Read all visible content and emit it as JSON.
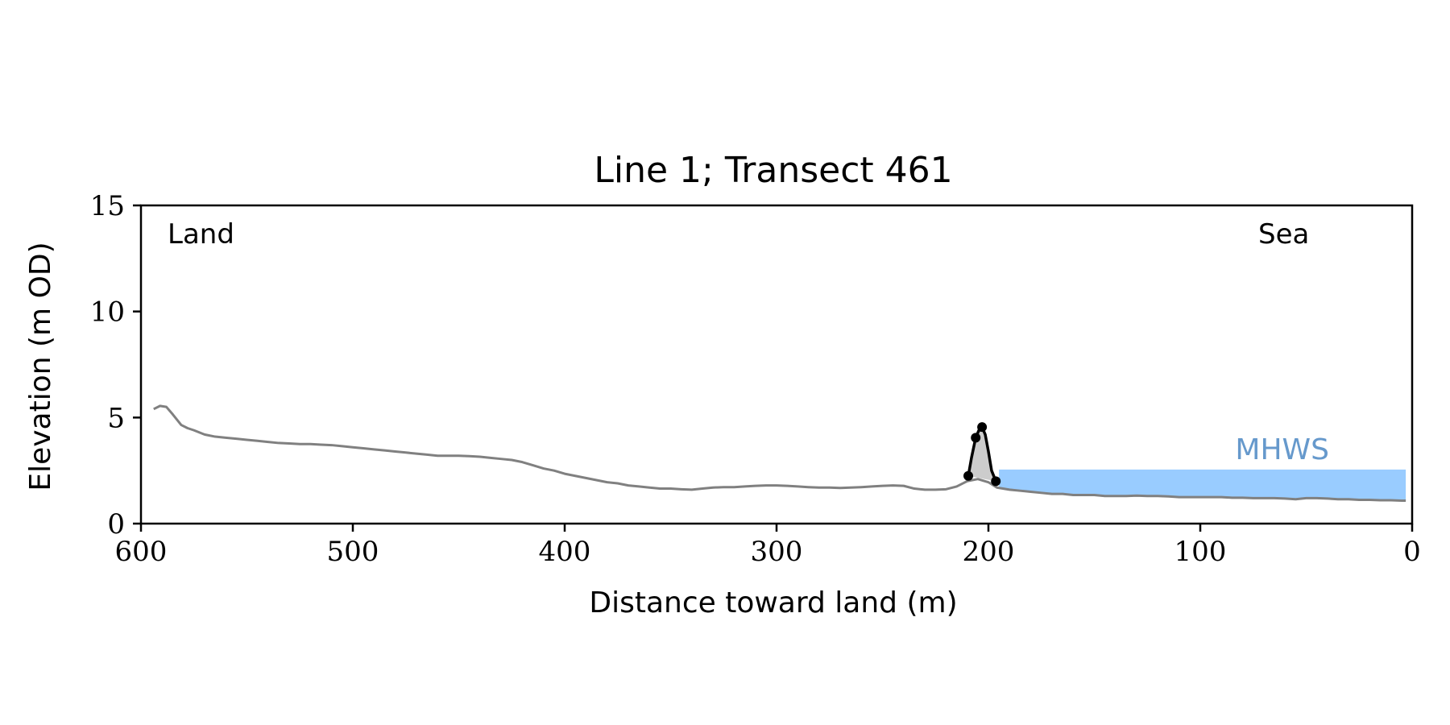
{
  "chart_data": {
    "type": "line",
    "title": "Line 1; Transect 461",
    "xlabel": "Distance toward land (m)",
    "ylabel": "Elevation (m OD)",
    "xlim": [
      600,
      0
    ],
    "ylim": [
      0,
      15
    ],
    "x_ticks": [
      600,
      500,
      400,
      300,
      200,
      100,
      0
    ],
    "y_ticks": [
      0,
      5,
      10,
      15
    ],
    "x_tick_labels": [
      "600",
      "500",
      "400",
      "300",
      "200",
      "100",
      "0"
    ],
    "y_tick_labels": [
      "0",
      "5",
      "10",
      "15"
    ],
    "grid": false,
    "annotations": {
      "land": "Land",
      "sea": "Sea",
      "mhws": "MHWS"
    },
    "mhws_level": 2.55,
    "mhws_x_range": [
      3,
      195
    ],
    "profile": {
      "x": [
        594,
        591,
        588,
        585,
        581,
        578,
        575,
        570,
        565,
        560,
        555,
        550,
        545,
        540,
        535,
        530,
        525,
        520,
        515,
        510,
        505,
        500,
        495,
        490,
        485,
        480,
        475,
        470,
        465,
        460,
        455,
        450,
        445,
        440,
        435,
        430,
        425,
        420,
        415,
        410,
        405,
        400,
        395,
        390,
        385,
        380,
        375,
        370,
        365,
        360,
        355,
        350,
        345,
        340,
        335,
        330,
        325,
        320,
        315,
        310,
        305,
        300,
        295,
        290,
        285,
        280,
        275,
        270,
        265,
        260,
        255,
        250,
        245,
        240,
        235,
        230,
        225,
        220,
        215,
        210,
        205,
        200,
        196,
        190,
        185,
        180,
        175,
        170,
        165,
        160,
        155,
        150,
        145,
        140,
        135,
        130,
        125,
        120,
        115,
        110,
        105,
        100,
        95,
        90,
        85,
        80,
        75,
        70,
        65,
        60,
        55,
        50,
        45,
        40,
        35,
        30,
        25,
        20,
        15,
        10,
        5,
        3
      ],
      "y": [
        5.4,
        5.55,
        5.5,
        5.15,
        4.65,
        4.5,
        4.4,
        4.2,
        4.1,
        4.05,
        4.0,
        3.95,
        3.9,
        3.85,
        3.8,
        3.78,
        3.75,
        3.75,
        3.72,
        3.7,
        3.65,
        3.6,
        3.55,
        3.5,
        3.45,
        3.4,
        3.35,
        3.3,
        3.25,
        3.2,
        3.2,
        3.2,
        3.18,
        3.15,
        3.1,
        3.05,
        3.0,
        2.9,
        2.75,
        2.6,
        2.5,
        2.35,
        2.25,
        2.15,
        2.05,
        1.95,
        1.9,
        1.8,
        1.75,
        1.7,
        1.65,
        1.65,
        1.62,
        1.6,
        1.65,
        1.7,
        1.72,
        1.72,
        1.75,
        1.78,
        1.8,
        1.8,
        1.78,
        1.75,
        1.72,
        1.7,
        1.7,
        1.68,
        1.7,
        1.72,
        1.75,
        1.78,
        1.8,
        1.78,
        1.65,
        1.6,
        1.6,
        1.62,
        1.75,
        2.0,
        2.1,
        1.95,
        1.7,
        1.6,
        1.55,
        1.5,
        1.45,
        1.4,
        1.4,
        1.35,
        1.35,
        1.35,
        1.3,
        1.3,
        1.3,
        1.32,
        1.3,
        1.3,
        1.28,
        1.25,
        1.25,
        1.25,
        1.25,
        1.25,
        1.22,
        1.22,
        1.2,
        1.2,
        1.2,
        1.18,
        1.15,
        1.2,
        1.2,
        1.18,
        1.15,
        1.15,
        1.12,
        1.12,
        1.1,
        1.1,
        1.08,
        1.08
      ],
      "color": "#808080"
    },
    "dune": {
      "x": [
        209.5,
        208,
        206,
        204.5,
        203,
        201.5,
        200,
        198.5,
        196.5
      ],
      "y": [
        2.25,
        3.1,
        4.05,
        4.4,
        4.55,
        4.2,
        3.4,
        2.5,
        2.0
      ],
      "color": "#000000",
      "fill": "#cccccc",
      "points": [
        {
          "x": 209.5,
          "y": 2.25
        },
        {
          "x": 206,
          "y": 4.05
        },
        {
          "x": 203,
          "y": 4.55
        },
        {
          "x": 196.5,
          "y": 2.0
        }
      ]
    },
    "colors": {
      "mhws_fill": "#99ccff",
      "mhws_text": "#6699cc",
      "axis": "#000000"
    }
  }
}
